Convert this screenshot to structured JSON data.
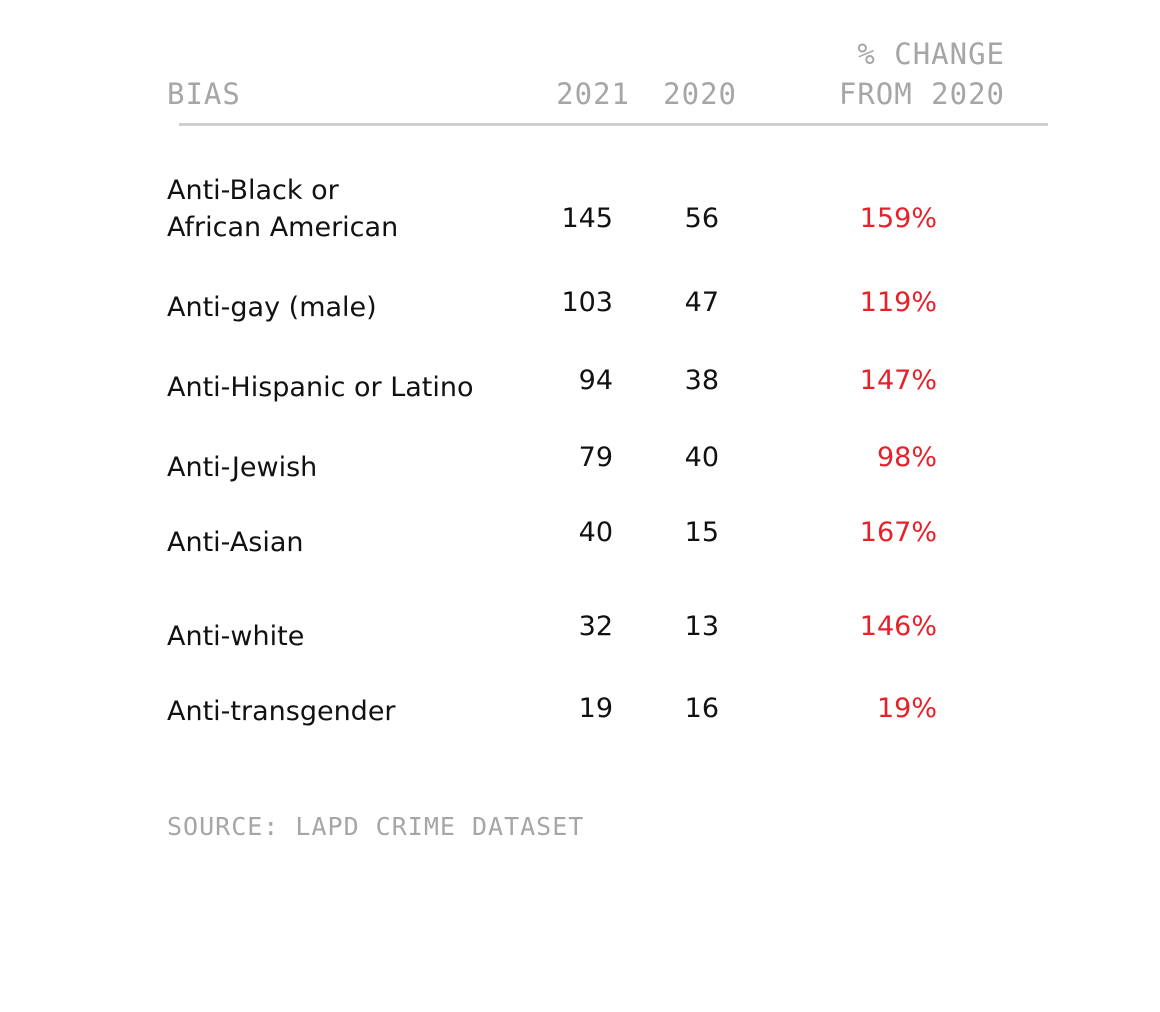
{
  "header": {
    "bias": "BIAS",
    "year_2021": "2021",
    "year_2020": "2020",
    "change_line1": "% CHANGE",
    "change_line2": "FROM 2020"
  },
  "rows": [
    {
      "label": "Anti-Black or\nAfrican American",
      "v2021": "145",
      "v2020": "56",
      "pct": "159%"
    },
    {
      "label": "Anti-gay (male)",
      "v2021": "103",
      "v2020": "47",
      "pct": "119%"
    },
    {
      "label": "Anti-Hispanic or Latino",
      "v2021": "94",
      "v2020": "38",
      "pct": "147%"
    },
    {
      "label": "Anti-Jewish",
      "v2021": "79",
      "v2020": "40",
      "pct": "98%"
    },
    {
      "label": "Anti-Asian",
      "v2021": "40",
      "v2020": "15",
      "pct": "167%"
    },
    {
      "label": "Anti-white",
      "v2021": "32",
      "v2020": "13",
      "pct": "146%"
    },
    {
      "label": "Anti-transgender",
      "v2021": "19",
      "v2020": "16",
      "pct": "19%"
    }
  ],
  "source": "SOURCE: LAPD CRIME DATASET",
  "colors": {
    "header_gray": "#a6a6a6",
    "text": "#111111",
    "change_red": "#e8202a",
    "rule": "#cfcfcf"
  },
  "chart_data": {
    "type": "table",
    "columns": [
      "BIAS",
      "2021",
      "2020",
      "% CHANGE FROM 2020"
    ],
    "rows": [
      [
        "Anti-Black or African American",
        145,
        56,
        "159%"
      ],
      [
        "Anti-gay (male)",
        103,
        47,
        "119%"
      ],
      [
        "Anti-Hispanic or Latino",
        94,
        38,
        "147%"
      ],
      [
        "Anti-Jewish",
        79,
        40,
        "98%"
      ],
      [
        "Anti-Asian",
        40,
        15,
        "167%"
      ],
      [
        "Anti-white",
        32,
        13,
        "146%"
      ],
      [
        "Anti-transgender",
        19,
        16,
        "19%"
      ]
    ]
  }
}
